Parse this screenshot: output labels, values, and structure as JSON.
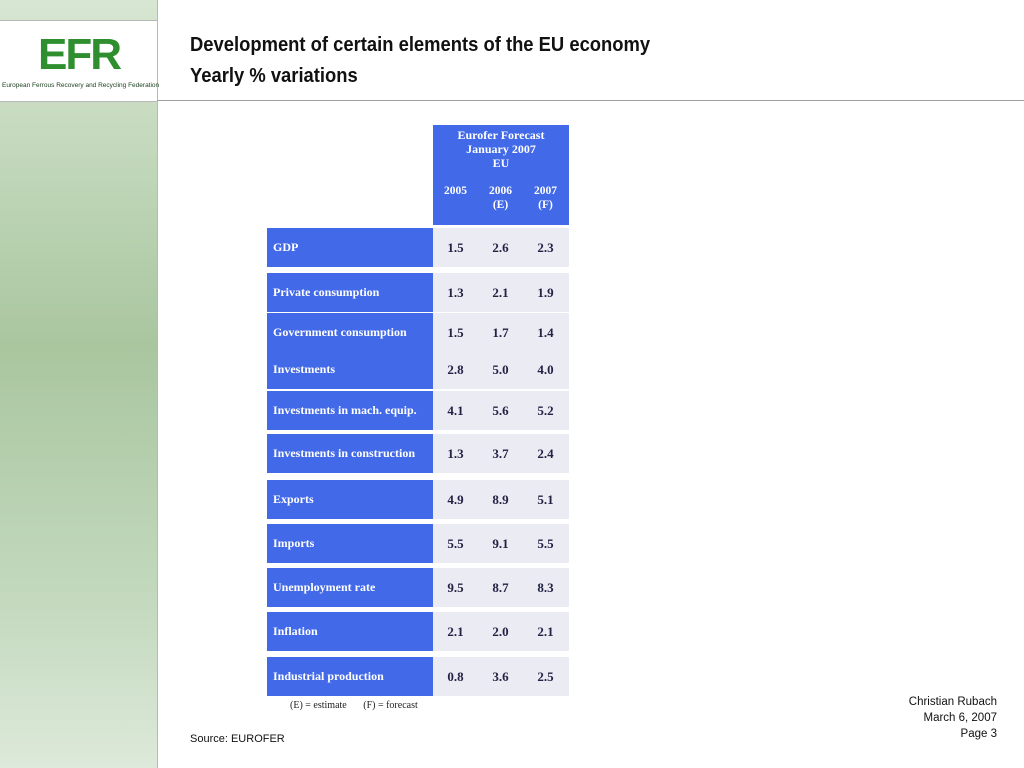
{
  "logo": {
    "mark": "EFR",
    "caption": "European Ferrous Recovery and Recycling Federation"
  },
  "title": {
    "line1": "Development of certain elements of the EU economy",
    "line2": "Yearly % variations"
  },
  "table": {
    "header_lines": [
      "Eurofer  Forecast",
      "January    2007",
      "EU"
    ],
    "years": [
      {
        "line1": "2005",
        "line2": ""
      },
      {
        "line1": "2006",
        "line2": "(E)"
      },
      {
        "line1": "2007",
        "line2": "(F)"
      }
    ],
    "rows": [
      {
        "label": "GDP",
        "values": [
          "1.5",
          "2.6",
          "2.3"
        ]
      },
      {
        "label": "Private consumption",
        "values": [
          "1.3",
          "2.1",
          "1.9"
        ]
      },
      {
        "label": "Government  consumption",
        "values": [
          "1.5",
          "1.7",
          "1.4"
        ]
      },
      {
        "label": "Investments",
        "values": [
          "2.8",
          "5.0",
          "4.0"
        ]
      },
      {
        "label": "Investments  in mach. equip.",
        "values": [
          "4.1",
          "5.6",
          "5.2"
        ]
      },
      {
        "label": "Investments in construction",
        "values": [
          "1.3",
          "3.7",
          "2.4"
        ]
      },
      {
        "label": "Exports",
        "values": [
          "4.9",
          "8.9",
          "5.1"
        ]
      },
      {
        "label": "Imports",
        "values": [
          "5.5",
          "9.1",
          "5.5"
        ]
      },
      {
        "label": "Unemployment rate",
        "values": [
          "9.5",
          "8.7",
          "8.3"
        ]
      },
      {
        "label": "Inflation",
        "values": [
          "2.1",
          "2.0",
          "2.1"
        ]
      },
      {
        "label": "Industrial production",
        "values": [
          "0.8",
          "3.6",
          "2.5"
        ]
      }
    ],
    "legend": [
      "(E) = estimate",
      "(F) = forecast"
    ],
    "colors": {
      "header_fill": "#4169e8",
      "value_fill": "#ebebf4"
    }
  },
  "source": "Source: EUROFER",
  "footer": {
    "author": "Christian Rubach",
    "date": "March 6, 2007",
    "page": "Page 3"
  }
}
